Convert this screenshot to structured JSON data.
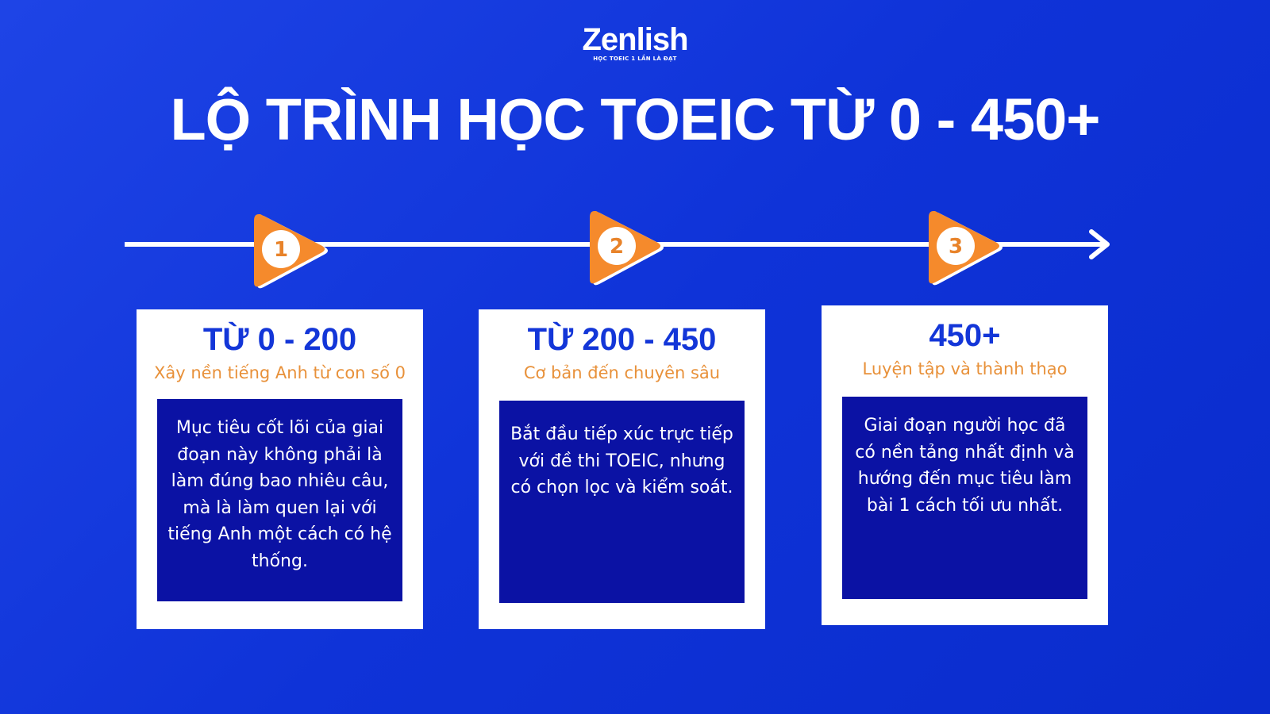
{
  "logo": {
    "brand": "Zenlish",
    "tagline": "HỌC TOEIC 1 LẦN LÀ ĐẠT"
  },
  "title": "LỘ TRÌNH HỌC TOEIC TỪ 0 - 450+",
  "colors": {
    "background": "#1336d8",
    "marker": "#f58a2c",
    "card_title": "#1336d8",
    "card_subtitle": "#e8913a",
    "box": "#0b12a4"
  },
  "steps": [
    {
      "number": "1",
      "title": "TỪ 0 - 200",
      "subtitle": "Xây nền tiếng Anh từ con số 0",
      "description": "Mục tiêu cốt lõi của giai đoạn này không phải là làm đúng bao nhiêu câu, mà là làm quen lại với tiếng Anh một cách có hệ thống."
    },
    {
      "number": "2",
      "title": "TỪ 200 - 450",
      "subtitle": "Cơ bản đến chuyên sâu",
      "description": "Bắt đầu tiếp xúc trực tiếp với đề thi TOEIC, nhưng có chọn lọc và kiểm soát."
    },
    {
      "number": "3",
      "title": "450+",
      "subtitle": "Luyện tập và thành thạo",
      "description": "Giai đoạn người học đã có nền tảng nhất định và hướng đến mục tiêu làm bài 1 cách tối ưu nhất."
    }
  ]
}
